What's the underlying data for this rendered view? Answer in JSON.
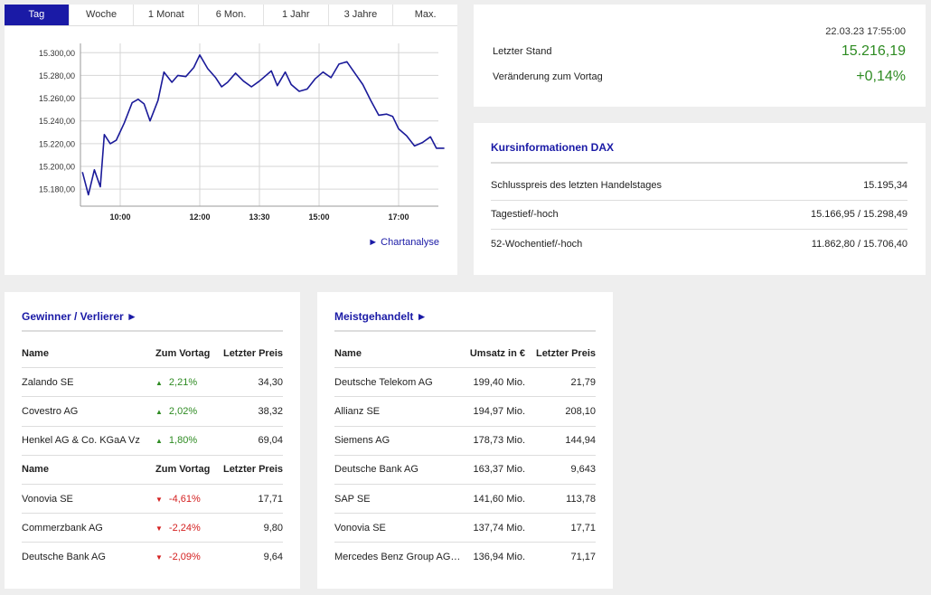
{
  "tabs": [
    "Tag",
    "Woche",
    "1 Monat",
    "6 Mon.",
    "1 Jahr",
    "3 Jahre",
    "Max."
  ],
  "active_tab": "Tag",
  "chart_link": "► Chartanalyse",
  "colors": {
    "accent": "#1a1aa6",
    "up": "#2e8b22",
    "down": "#d42020",
    "line": "#1a1a99"
  },
  "chart_data": {
    "type": "line",
    "x_ticks": [
      "10:00",
      "12:00",
      "13:30",
      "15:00",
      "17:00"
    ],
    "y_ticks": [
      "15.180,00",
      "15.200,00",
      "15.220,00",
      "15.240,00",
      "15.260,00",
      "15.280,00",
      "15.300,00"
    ],
    "ylim": [
      15165,
      15305
    ],
    "xlim_hours": [
      9.0,
      18.0
    ],
    "series": [
      {
        "points": [
          [
            9.05,
            15195
          ],
          [
            9.2,
            15175
          ],
          [
            9.35,
            15197
          ],
          [
            9.5,
            15182
          ],
          [
            9.6,
            15228
          ],
          [
            9.75,
            15220
          ],
          [
            9.9,
            15223
          ],
          [
            10.1,
            15238
          ],
          [
            10.3,
            15256
          ],
          [
            10.45,
            15259
          ],
          [
            10.6,
            15255
          ],
          [
            10.75,
            15240
          ],
          [
            10.95,
            15258
          ],
          [
            11.1,
            15283
          ],
          [
            11.3,
            15274
          ],
          [
            11.45,
            15280
          ],
          [
            11.65,
            15279
          ],
          [
            11.85,
            15287
          ],
          [
            12.0,
            15298
          ],
          [
            12.2,
            15286
          ],
          [
            12.4,
            15278
          ],
          [
            12.55,
            15270
          ],
          [
            12.7,
            15274
          ],
          [
            12.9,
            15282
          ],
          [
            13.1,
            15275
          ],
          [
            13.3,
            15270
          ],
          [
            13.5,
            15275
          ],
          [
            13.8,
            15284
          ],
          [
            13.95,
            15271
          ],
          [
            14.15,
            15283
          ],
          [
            14.3,
            15272
          ],
          [
            14.5,
            15266
          ],
          [
            14.7,
            15268
          ],
          [
            14.9,
            15277
          ],
          [
            15.1,
            15283
          ],
          [
            15.3,
            15278
          ],
          [
            15.5,
            15290
          ],
          [
            15.7,
            15292
          ],
          [
            15.9,
            15282
          ],
          [
            16.1,
            15272
          ],
          [
            16.3,
            15258
          ],
          [
            16.5,
            15245
          ],
          [
            16.7,
            15246
          ],
          [
            16.85,
            15244
          ],
          [
            17.0,
            15233
          ],
          [
            17.2,
            15227
          ],
          [
            17.4,
            15218
          ],
          [
            17.6,
            15221
          ],
          [
            17.8,
            15226
          ],
          [
            17.95,
            15216
          ],
          [
            18.15,
            15216
          ]
        ]
      }
    ]
  },
  "stand": {
    "date": "22.03.23 17:55:00",
    "last_label": "Letzter Stand",
    "last_value": "15.216,19",
    "change_label": "Veränderung zum Vortag",
    "change_value": "+0,14%"
  },
  "info": {
    "title": "Kursinformationen DAX",
    "rows": [
      {
        "label": "Schlusspreis des letzten Handelstages",
        "value": "15.195,34"
      },
      {
        "label": "Tagestief/-hoch",
        "value": "15.166,95 / 15.298,49"
      },
      {
        "label": "52-Wochentief/-hoch",
        "value": "11.862,80 / 15.706,40"
      }
    ]
  },
  "gainers_losers": {
    "title": "Gewinner / Verlierer ►",
    "headers": [
      "Name",
      "Zum Vortag",
      "Letzter Preis"
    ],
    "gainers": [
      {
        "name": "Zalando SE",
        "change": "2,21%",
        "price": "34,30"
      },
      {
        "name": "Covestro AG",
        "change": "2,02%",
        "price": "38,32"
      },
      {
        "name": "Henkel AG & Co. KGaA Vz",
        "change": "1,80%",
        "price": "69,04"
      }
    ],
    "losers": [
      {
        "name": "Vonovia SE",
        "change": "-4,61%",
        "price": "17,71"
      },
      {
        "name": "Commerzbank AG",
        "change": "-2,24%",
        "price": "9,80"
      },
      {
        "name": "Deutsche Bank AG",
        "change": "-2,09%",
        "price": "9,64"
      }
    ],
    "up_arrow": "▲",
    "down_arrow": "▼"
  },
  "most_traded": {
    "title": "Meistgehandelt ►",
    "headers": [
      "Name",
      "Umsatz in €",
      "Letzter Preis"
    ],
    "rows": [
      {
        "name": "Deutsche Telekom AG",
        "volume": "199,40 Mio.",
        "price": "21,79"
      },
      {
        "name": "Allianz SE",
        "volume": "194,97 Mio.",
        "price": "208,10"
      },
      {
        "name": "Siemens AG",
        "volume": "178,73 Mio.",
        "price": "144,94"
      },
      {
        "name": "Deutsche Bank AG",
        "volume": "163,37 Mio.",
        "price": "9,643"
      },
      {
        "name": "SAP SE",
        "volume": "141,60 Mio.",
        "price": "113,78"
      },
      {
        "name": "Vonovia SE",
        "volume": "137,74 Mio.",
        "price": "17,71"
      },
      {
        "name": "Mercedes Benz Group AG…",
        "volume": "136,94 Mio.",
        "price": "71,17"
      }
    ]
  }
}
